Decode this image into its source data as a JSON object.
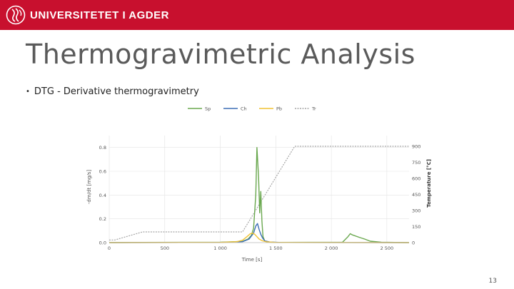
{
  "header": {
    "brand_text": "UNIVERSITETET I AGDER",
    "bar_color": "#c8102e",
    "logo_icon": "uia-seal-icon"
  },
  "slide": {
    "title": "Thermogravimetric Analysis",
    "bullets": [
      {
        "text": "DTG - Derivative thermogravimetry"
      }
    ],
    "page_number": "13"
  },
  "chart_data": {
    "type": "line",
    "title": "",
    "xlabel": "Time [s]",
    "ylabel": "-dm/dt [mg/s]",
    "y2label": "Temperature [°C]",
    "xlim": [
      0,
      2700
    ],
    "ylim": [
      0,
      0.9
    ],
    "y2lim": [
      0,
      1000
    ],
    "xticks": [
      0,
      500,
      1000,
      1500,
      2000,
      2500
    ],
    "xtick_labels": [
      "0",
      "500",
      "1 000",
      "1 500",
      "2 000",
      "2 500"
    ],
    "yticks": [
      0,
      0.2,
      0.4,
      0.6,
      0.8
    ],
    "ytick_labels": [
      "0.0",
      "0.2",
      "0.4",
      "0.6",
      "0.8"
    ],
    "y2ticks": [
      0,
      150,
      300,
      450,
      600,
      750,
      900
    ],
    "y2tick_labels": [
      "0",
      "150",
      "300",
      "450",
      "600",
      "750",
      "900"
    ],
    "grid": true,
    "legend_position": "top-center",
    "series": [
      {
        "name": "Sp",
        "color": "#6aa84f",
        "axis": "left",
        "style": "solid",
        "x": [
          0,
          300,
          1000,
          1200,
          1250,
          1280,
          1300,
          1320,
          1330,
          1345,
          1355,
          1365,
          1375,
          1385,
          1400,
          1420,
          1500,
          2100,
          2150,
          2170,
          2190,
          2250,
          2300,
          2350,
          2450,
          2700
        ],
        "y": [
          0,
          0.002,
          0.003,
          0.01,
          0.03,
          0.06,
          0.12,
          0.4,
          0.8,
          0.55,
          0.25,
          0.43,
          0.18,
          0.05,
          0.015,
          0.005,
          0.002,
          0.003,
          0.05,
          0.075,
          0.065,
          0.045,
          0.03,
          0.012,
          0.003,
          0
        ]
      },
      {
        "name": "Ch",
        "color": "#3d6fb6",
        "axis": "left",
        "style": "solid",
        "x": [
          0,
          1000,
          1200,
          1260,
          1300,
          1320,
          1335,
          1350,
          1365,
          1380,
          1400,
          1450,
          1550,
          2700
        ],
        "y": [
          0,
          0.002,
          0.008,
          0.03,
          0.08,
          0.14,
          0.16,
          0.11,
          0.07,
          0.04,
          0.015,
          0.004,
          0.001,
          0
        ]
      },
      {
        "name": "Pb",
        "color": "#f1c232",
        "axis": "left",
        "style": "solid",
        "x": [
          0,
          1000,
          1150,
          1200,
          1240,
          1270,
          1290,
          1310,
          1330,
          1350,
          1380,
          1420,
          1500,
          1600,
          2700
        ],
        "y": [
          0,
          0.002,
          0.008,
          0.02,
          0.05,
          0.075,
          0.08,
          0.07,
          0.05,
          0.03,
          0.015,
          0.006,
          0.002,
          0.001,
          0
        ]
      },
      {
        "name": "Tr",
        "color": "#a6a6a6",
        "axis": "right",
        "style": "dashed",
        "x": [
          0,
          50,
          300,
          1200,
          1670,
          2700
        ],
        "y": [
          25,
          25,
          100,
          100,
          900,
          900
        ]
      }
    ]
  }
}
